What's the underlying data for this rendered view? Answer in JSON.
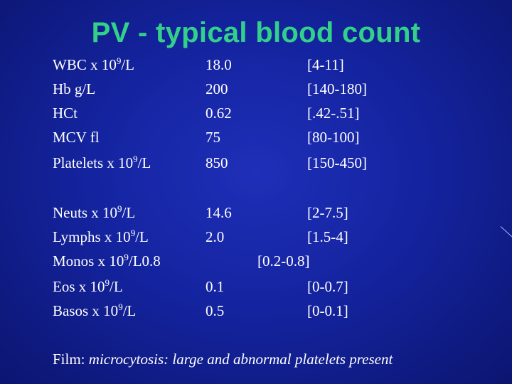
{
  "title": "PV - typical blood count",
  "rows_top": [
    {
      "label_pre": "WBC x 10",
      "sup": "9",
      "label_post": "/L",
      "value": "18.0",
      "range": "[4-11]"
    },
    {
      "label_pre": "Hb g/L",
      "sup": "",
      "label_post": "",
      "value": "200",
      "range": "[140-180]"
    },
    {
      "label_pre": "HCt",
      "sup": "",
      "label_post": "",
      "value": "0.62",
      "range": "[.42-.51]"
    },
    {
      "label_pre": "MCV fl",
      "sup": "",
      "label_post": "",
      "value": "75",
      "range": "[80-100]"
    },
    {
      "label_pre": "Platelets x 10",
      "sup": "9",
      "label_post": "/L",
      "value": "850",
      "range": "[150-450]"
    }
  ],
  "rows_bottom": [
    {
      "label_pre": "Neuts x 10",
      "sup": "9",
      "label_post": "/L",
      "value": "14.6",
      "range": "[2-7.5]"
    },
    {
      "label_pre": "Lymphs x 10",
      "sup": "9",
      "label_post": "/L",
      "value": "2.0",
      "range": "[1.5-4]"
    },
    {
      "label_pre": "Monos x 10",
      "sup": "9",
      "label_post": "/L0.8",
      "value": "",
      "range": "[0.2-0.8]"
    },
    {
      "label_pre": "Eos x 10",
      "sup": "9",
      "label_post": "/L",
      "value": "0.1",
      "range": "[0-0.7]"
    },
    {
      "label_pre": "Basos x 10",
      "sup": "9",
      "label_post": "/L",
      "value": "0.5",
      "range": "[0-0.1]"
    }
  ],
  "film": {
    "label": "Film: ",
    "text": "microcytosis: large and abnormal platelets present"
  }
}
